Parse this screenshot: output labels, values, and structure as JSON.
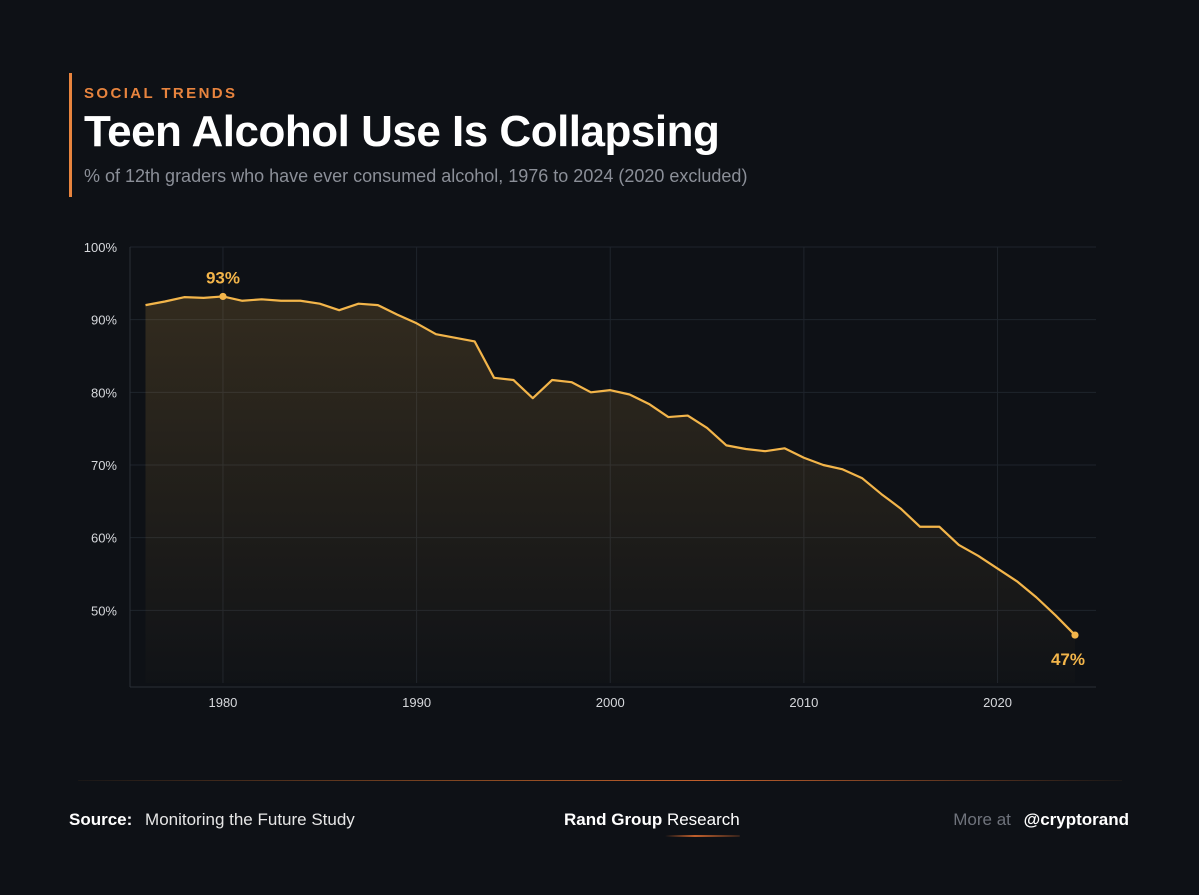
{
  "header": {
    "kicker": "SOCIAL TRENDS",
    "title": "Teen Alcohol Use Is Collapsing",
    "subtitle": "% of 12th graders who have ever consumed alcohol, 1976 to 2024 (2020 excluded)"
  },
  "colors": {
    "background": "#0e1116",
    "accent": "#e8843e",
    "line": "#f3b54a",
    "grid": "#1f242c"
  },
  "chart_data": {
    "type": "area",
    "title": "Teen Alcohol Use Is Collapsing",
    "subtitle": "% of 12th graders who have ever consumed alcohol, 1976 to 2024 (2020 excluded)",
    "xlim": [
      1976,
      2024
    ],
    "ylim": [
      40,
      100
    ],
    "x_ticks": [
      1980,
      1990,
      2000,
      2010,
      2020
    ],
    "y_ticks": [
      50,
      60,
      70,
      80,
      90,
      100
    ],
    "y_tick_labels": [
      "50%",
      "60%",
      "70%",
      "80%",
      "90%",
      "100%"
    ],
    "grid": true,
    "series": [
      {
        "x": [
          1976,
          1977,
          1978,
          1979,
          1980,
          1981,
          1982,
          1983,
          1984,
          1985,
          1986,
          1987,
          1988,
          1989,
          1990,
          1991,
          1992,
          1993,
          1994,
          1995,
          1996,
          1997,
          1998,
          1999,
          2000,
          2001,
          2002,
          2003,
          2004,
          2005,
          2006,
          2007,
          2008,
          2009,
          2010,
          2011,
          2012,
          2013,
          2014,
          2015,
          2016,
          2017,
          2018,
          2019,
          2021,
          2022,
          2023,
          2024
        ],
        "y": [
          92.0,
          92.5,
          93.1,
          93.0,
          93.2,
          92.6,
          92.8,
          92.6,
          92.6,
          92.2,
          91.3,
          92.2,
          92.0,
          90.7,
          89.5,
          88.0,
          87.5,
          87.0,
          82.0,
          81.7,
          79.2,
          81.7,
          81.4,
          80.0,
          80.3,
          79.7,
          78.4,
          76.6,
          76.8,
          75.1,
          72.7,
          72.2,
          71.9,
          72.3,
          71.0,
          70.0,
          69.4,
          68.2,
          66.0,
          64.0,
          61.5,
          61.5,
          59.0,
          57.5,
          54.0,
          51.8,
          49.3,
          46.6
        ]
      }
    ],
    "annotations": [
      {
        "x": 1980,
        "y": 93.2,
        "label": "93%"
      },
      {
        "x": 2024,
        "y": 46.6,
        "label": "47%"
      }
    ]
  },
  "footer": {
    "source_label": "Source:",
    "source_text": "Monitoring the Future Study",
    "brand_bold": "Rand Group",
    "brand_rest": "Research",
    "more_label": "More at",
    "handle": "@cryptorand"
  }
}
